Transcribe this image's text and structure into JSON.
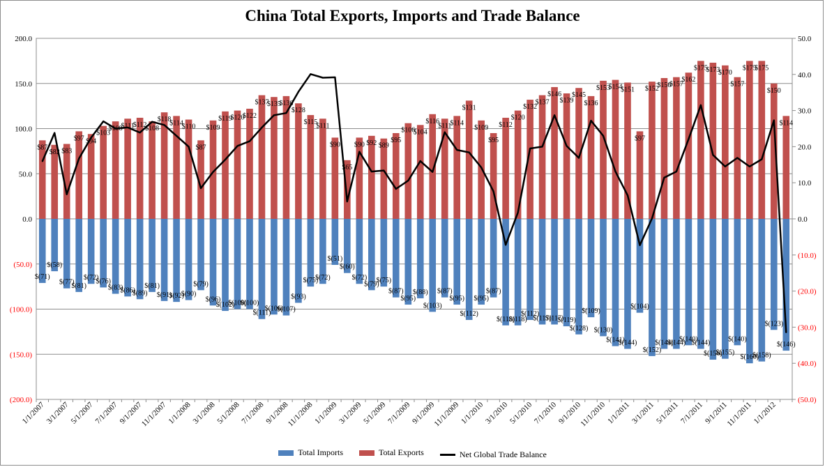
{
  "chart_data": {
    "type": "bar",
    "title": "China Total Exports, Imports and Trade Balance",
    "categories": [
      "1/1/2007",
      "2/1/2007",
      "3/1/2007",
      "4/1/2007",
      "5/1/2007",
      "6/1/2007",
      "7/1/2007",
      "8/1/2007",
      "9/1/2007",
      "10/1/2007",
      "11/1/2007",
      "12/1/2007",
      "1/1/2008",
      "2/1/2008",
      "3/1/2008",
      "4/1/2008",
      "5/1/2008",
      "6/1/2008",
      "7/1/2008",
      "8/1/2008",
      "9/1/2008",
      "10/1/2008",
      "11/1/2008",
      "12/1/2008",
      "1/1/2009",
      "2/1/2009",
      "3/1/2009",
      "4/1/2009",
      "5/1/2009",
      "6/1/2009",
      "7/1/2009",
      "8/1/2009",
      "9/1/2009",
      "10/1/2009",
      "11/1/2009",
      "12/1/2009",
      "1/1/2010",
      "2/1/2010",
      "3/1/2010",
      "4/1/2010",
      "5/1/2010",
      "6/1/2010",
      "7/1/2010",
      "8/1/2010",
      "9/1/2010",
      "10/1/2010",
      "11/1/2010",
      "12/1/2010",
      "1/1/2011",
      "2/1/2011",
      "3/1/2011",
      "4/1/2011",
      "5/1/2011",
      "6/1/2011",
      "7/1/2011",
      "8/1/2011",
      "9/1/2011",
      "10/1/2011",
      "11/1/2011",
      "12/1/2011",
      "1/1/2012",
      "2/1/2012"
    ],
    "x_tick_labels": [
      "1/1/2007",
      "3/1/2007",
      "5/1/2007",
      "7/1/2007",
      "9/1/2007",
      "11/1/2007",
      "1/1/2008",
      "3/1/2008",
      "5/1/2008",
      "7/1/2008",
      "9/1/2008",
      "11/1/2008",
      "1/1/2009",
      "3/1/2009",
      "5/1/2009",
      "7/1/2009",
      "9/1/2009",
      "11/1/2009",
      "1/1/2010",
      "3/1/2010",
      "5/1/2010",
      "7/1/2010",
      "9/1/2010",
      "11/1/2010",
      "1/1/2011",
      "3/1/2011",
      "5/1/2011",
      "7/1/2011",
      "9/1/2011",
      "11/1/2011",
      "1/1/2012"
    ],
    "series": [
      {
        "name": "Total Imports",
        "color": "#4f81bd",
        "axis": "left",
        "values": [
          -71,
          -58,
          -77,
          -81,
          -72,
          -76,
          -83,
          -86,
          -89,
          -81,
          -91,
          -92,
          -90,
          -79,
          -96,
          -102,
          -100,
          -100,
          -111,
          -106,
          -107,
          -93,
          -75,
          -72,
          -51,
          -60,
          -72,
          -79,
          -75,
          -87,
          -95,
          -88,
          -103,
          -87,
          -95,
          -112,
          -95,
          -87,
          -118,
          -118,
          -112,
          -117,
          -117,
          -119,
          -128,
          -109,
          -130,
          -141,
          -144,
          -104,
          -152,
          -144,
          -144,
          -140,
          -144,
          -156,
          -155,
          -140,
          -160,
          -158,
          -123,
          -146
        ]
      },
      {
        "name": "Total Exports",
        "color": "#c0504d",
        "axis": "left",
        "values": [
          87,
          82,
          83,
          97,
          94,
          103,
          108,
          111,
          112,
          108,
          118,
          114,
          110,
          87,
          109,
          119,
          120,
          122,
          137,
          135,
          136,
          128,
          115,
          111,
          90,
          65,
          90,
          92,
          89,
          95,
          106,
          104,
          116,
          111,
          114,
          131,
          109,
          95,
          112,
          120,
          132,
          137,
          146,
          139,
          145,
          136,
          153,
          154,
          151,
          97,
          152,
          156,
          157,
          162,
          175,
          173,
          170,
          157,
          175,
          175,
          150,
          114
        ]
      },
      {
        "name": "Net Global Trade Balance",
        "color": "#000000",
        "axis": "right",
        "type": "line",
        "values": [
          15.9,
          23.8,
          6.8,
          16.7,
          22.5,
          27.0,
          25.0,
          25.3,
          23.9,
          26.9,
          26.0,
          23.0,
          20.0,
          8.5,
          13.0,
          16.4,
          20.2,
          21.5,
          25.3,
          28.7,
          29.3,
          35.2,
          40.1,
          39.1,
          39.2,
          4.8,
          18.6,
          13.1,
          13.4,
          8.3,
          10.6,
          16.0,
          13.0,
          24.0,
          19.1,
          18.4,
          14.2,
          7.6,
          -7.2,
          1.7,
          19.5,
          20.0,
          28.7,
          20.2,
          16.9,
          27.2,
          23.0,
          13.1,
          6.5,
          -7.3,
          0.1,
          11.4,
          13.1,
          22.1,
          31.5,
          17.7,
          14.5,
          16.9,
          14.5,
          16.5,
          27.3,
          -31.5
        ]
      }
    ],
    "export_labels": [
      "$87",
      "$82",
      "$83",
      "$97",
      "$94",
      "$103",
      "$108",
      "$111",
      "$112",
      "$108",
      "$118",
      "$114",
      "$110",
      "$87",
      "$109",
      "$119",
      "$120",
      "$122",
      "$137",
      "$135",
      "$136",
      "$128",
      "$115",
      "$111",
      "$90",
      "$65",
      "$90",
      "$92",
      "$89",
      "$95",
      "$106",
      "$104",
      "$116",
      "$111",
      "$114",
      "$131",
      "$109",
      "$95",
      "$112",
      "$120",
      "$132",
      "$137",
      "$146",
      "$139",
      "$145",
      "$136",
      "$153",
      "$154",
      "$151",
      "$97",
      "$152",
      "$156",
      "$157",
      "$162",
      "$175",
      "$173",
      "$170",
      "$157",
      "$175",
      "$175",
      "$150",
      "$114"
    ],
    "import_labels": [
      "$(71)",
      "$(58)",
      "$(77)",
      "$(81)",
      "$(72)",
      "$(76)",
      "$(83)",
      "$(86)",
      "$(89)",
      "$(81)",
      "$(91)",
      "$(92)",
      "$(90)",
      "$(79)",
      "$(96)",
      "$(102)",
      "$(100)",
      "$(100)",
      "$(111)",
      "$(106)",
      "$(107)",
      "$(93)",
      "$(75)",
      "$(72)",
      "$(51)",
      "$(60)",
      "$(72)",
      "$(79)",
      "$(75)",
      "$(87)",
      "$(95)",
      "$(88)",
      "$(103)",
      "$(87)",
      "$(95)",
      "$(112)",
      "$(95)",
      "$(87)",
      "$(118)",
      "$(118)",
      "$(112)",
      "$(117)",
      "$(117)",
      "$(119)",
      "$(128)",
      "$(109)",
      "$(130)",
      "$(141)",
      "$(144)",
      "$(104)",
      "$(152)",
      "$(144)",
      "$(144)",
      "$(140)",
      "$(144)",
      "$(156)",
      "$(155)",
      "$(140)",
      "$(160)",
      "$(158)",
      "$(123)",
      "$(146)"
    ],
    "left_axis": {
      "ylim": [
        -200,
        200
      ],
      "ticks": [
        200,
        150,
        100,
        50,
        0,
        -50,
        -100,
        -150,
        -200
      ],
      "tick_labels": [
        "200.0",
        "150.0",
        "100.0",
        "50.0",
        "0.0",
        "(50.0)",
        "(100.0)",
        "(150.0)",
        "(200.0)"
      ]
    },
    "right_axis": {
      "ylim": [
        -50,
        50
      ],
      "ticks": [
        50,
        40,
        30,
        20,
        10,
        0,
        -10,
        -20,
        -30,
        -40,
        -50
      ],
      "tick_labels": [
        "50.0",
        "40.0",
        "30.0",
        "20.0",
        "10.0",
        "0.0",
        "(10.0)",
        "(20.0)",
        "(30.0)",
        "(40.0)",
        "(50.0)"
      ]
    },
    "negative_tick_color": "#ff0000",
    "grid": true,
    "legend_position": "bottom"
  }
}
